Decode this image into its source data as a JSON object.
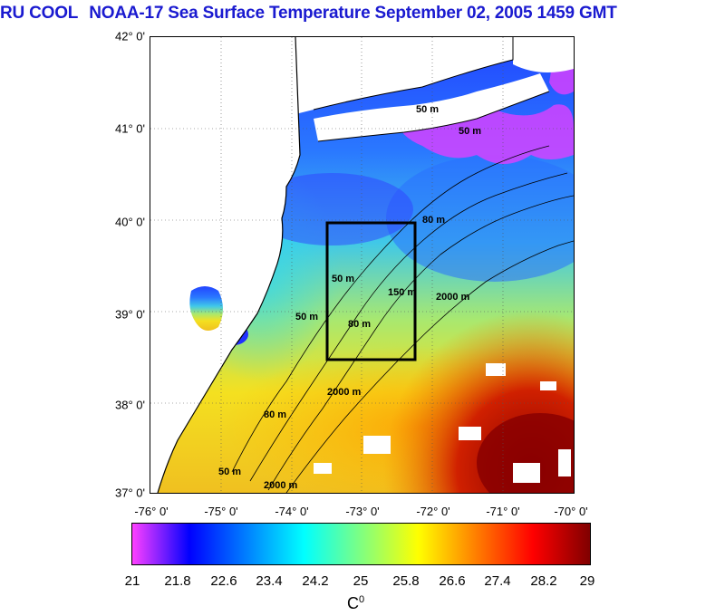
{
  "title": {
    "group": "RU COOL",
    "text": "NOAA-17 Sea Surface Temperature September 02, 2005 1459 GMT"
  },
  "map": {
    "lat_labels": [
      "42° 0'",
      "41° 0'",
      "40° 0'",
      "39° 0'",
      "38° 0'",
      "37° 0'"
    ],
    "lon_labels": [
      "-76° 0'",
      "-75° 0'",
      "-74° 0'",
      "-73° 0'",
      "-72° 0'",
      "-71° 0'",
      "-70° 0'"
    ],
    "lat_range": [
      37,
      42
    ],
    "lon_range": [
      -76,
      -70
    ],
    "box": {
      "lon": [
        -73.5,
        -72.2
      ],
      "lat": [
        38.5,
        40.0
      ]
    },
    "contour_labels": [
      "50 m",
      "80 m",
      "150 m",
      "2000 m"
    ],
    "colors": {
      "land": "#ffffff",
      "coast": "#000000",
      "box": "#000000"
    }
  },
  "colorbar": {
    "ticks": [
      "21",
      "21.8",
      "22.6",
      "23.4",
      "24.2",
      "25",
      "25.8",
      "26.6",
      "27.4",
      "28.2",
      "29"
    ],
    "unit": "C",
    "unit_sup": "0",
    "colors": [
      "#ff40ff",
      "#0000ff",
      "#0080ff",
      "#00ffff",
      "#80ff80",
      "#ffff00",
      "#ff8000",
      "#ff0000",
      "#800000"
    ]
  }
}
